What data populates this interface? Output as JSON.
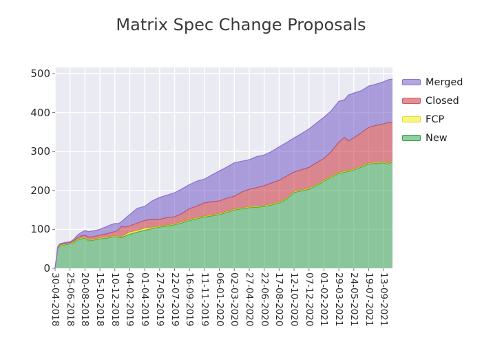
{
  "chart_data": {
    "type": "area",
    "stacked": true,
    "title": "Matrix Spec Change Proposals",
    "xlabel": "",
    "ylabel": "",
    "grid": true,
    "plot_bg": "#eaeaf2",
    "grid_color": "#ffffff",
    "ylim": [
      0,
      515
    ],
    "y_ticks": [
      0,
      100,
      200,
      300,
      400,
      500
    ],
    "x_tick_interval_days": 56,
    "x_total_days": 1265,
    "x_tick_labels": [
      "30-04-2018",
      "25-06-2018",
      "20-08-2018",
      "15-10-2018",
      "10-12-2018",
      "04-02-2019",
      "01-04-2019",
      "27-05-2019",
      "22-07-2019",
      "16-09-2019",
      "11-11-2019",
      "06-01-2020",
      "02-03-2020",
      "27-04-2020",
      "22-06-2020",
      "17-08-2020",
      "12-10-2020",
      "07-12-2020",
      "01-02-2021",
      "29-03-2021",
      "24-05-2021",
      "19-07-2021",
      "13-09-2021"
    ],
    "series_order_bottom_to_top": [
      "New",
      "FCP",
      "Closed",
      "Merged"
    ],
    "series_styles": {
      "New": {
        "fill": "rgba(44,160,68,0.5)",
        "line": "#2ca444"
      },
      "FCP": {
        "fill": "rgba(240,235,0,0.5)",
        "line": "#e3dc2a"
      },
      "Closed": {
        "fill": "rgba(200,34,44,0.5)",
        "line": "#d05a66"
      },
      "Merged": {
        "fill": "rgba(106,78,194,0.5)",
        "line": "#8f72d2"
      }
    },
    "columns": [
      "days_since_start",
      "New",
      "FCP",
      "Closed",
      "Merged"
    ],
    "points": [
      [
        0,
        0,
        0,
        0,
        0
      ],
      [
        6,
        30,
        1,
        1,
        0
      ],
      [
        10,
        52,
        2,
        1,
        1
      ],
      [
        18,
        57,
        2,
        2,
        2
      ],
      [
        35,
        60,
        2,
        2,
        2
      ],
      [
        56,
        63,
        1,
        2,
        2
      ],
      [
        70,
        66,
        2,
        3,
        3
      ],
      [
        84,
        73,
        2,
        4,
        6
      ],
      [
        98,
        76,
        2,
        5,
        9
      ],
      [
        112,
        78,
        2,
        5,
        12
      ],
      [
        126,
        71,
        2,
        7,
        14
      ],
      [
        140,
        72,
        2,
        7,
        15
      ],
      [
        168,
        76,
        2,
        7,
        15
      ],
      [
        182,
        77,
        2,
        8,
        17
      ],
      [
        196,
        78,
        2,
        9,
        19
      ],
      [
        210,
        80,
        2,
        10,
        20
      ],
      [
        224,
        82,
        2,
        10,
        21
      ],
      [
        238,
        80,
        2,
        17,
        16
      ],
      [
        248,
        79,
        2,
        26,
        12
      ],
      [
        262,
        83,
        3,
        20,
        22
      ],
      [
        280,
        88,
        5,
        16,
        29
      ],
      [
        308,
        93,
        4,
        19,
        38
      ],
      [
        336,
        98,
        5,
        20,
        36
      ],
      [
        364,
        102,
        3,
        21,
        47
      ],
      [
        392,
        106,
        2,
        18,
        56
      ],
      [
        420,
        109,
        2,
        19,
        58
      ],
      [
        448,
        112,
        2,
        18,
        62
      ],
      [
        476,
        117,
        2,
        22,
        63
      ],
      [
        504,
        123,
        2,
        28,
        62
      ],
      [
        532,
        128,
        2,
        30,
        64
      ],
      [
        560,
        132,
        2,
        34,
        61
      ],
      [
        588,
        135,
        2,
        34,
        69
      ],
      [
        616,
        138,
        2,
        33,
        77
      ],
      [
        644,
        144,
        2,
        34,
        80
      ],
      [
        672,
        150,
        2,
        33,
        86
      ],
      [
        700,
        153,
        2,
        41,
        79
      ],
      [
        728,
        156,
        2,
        45,
        76
      ],
      [
        756,
        157,
        2,
        48,
        80
      ],
      [
        784,
        159,
        2,
        51,
        79
      ],
      [
        812,
        163,
        2,
        54,
        81
      ],
      [
        840,
        168,
        2,
        56,
        86
      ],
      [
        868,
        178,
        2,
        57,
        86
      ],
      [
        896,
        195,
        2,
        50,
        88
      ],
      [
        924,
        199,
        2,
        52,
        93
      ],
      [
        952,
        203,
        2,
        54,
        99
      ],
      [
        980,
        213,
        2,
        56,
        102
      ],
      [
        1008,
        224,
        2,
        56,
        106
      ],
      [
        1036,
        234,
        2,
        64,
        105
      ],
      [
        1064,
        244,
        2,
        78,
        105
      ],
      [
        1085,
        247,
        2,
        87,
        97
      ],
      [
        1100,
        249,
        2,
        76,
        118
      ],
      [
        1120,
        253,
        2,
        80,
        115
      ],
      [
        1148,
        260,
        2,
        86,
        108
      ],
      [
        1176,
        268,
        2,
        92,
        106
      ],
      [
        1204,
        270,
        2,
        95,
        106
      ],
      [
        1232,
        271,
        2,
        98,
        108
      ],
      [
        1248,
        268,
        2,
        104,
        110
      ],
      [
        1265,
        274,
        2,
        98,
        112
      ]
    ],
    "legend": {
      "position": "right-top",
      "items": [
        {
          "label": "Merged",
          "series": "Merged"
        },
        {
          "label": "Closed",
          "series": "Closed"
        },
        {
          "label": "FCP",
          "series": "FCP"
        },
        {
          "label": "New",
          "series": "New"
        }
      ]
    }
  }
}
